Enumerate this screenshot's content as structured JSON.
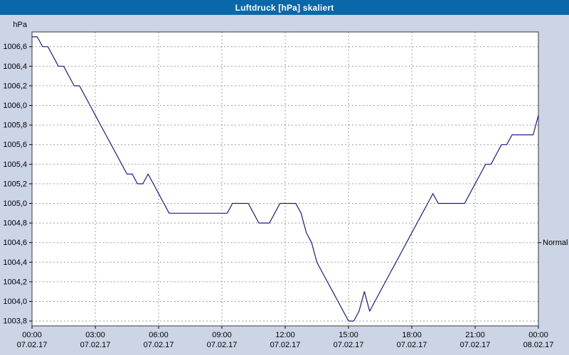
{
  "window": {
    "title": "Luftdruck [hPa] skaliert"
  },
  "colors": {
    "background": "#ccd5e5",
    "title_bar": "#0b68a8",
    "title_text": "#ffffff",
    "plot_bg": "#ffffff",
    "plot_border": "#3a3a3a",
    "grid": "#9aa0a8",
    "axis": "#000000",
    "line": "#1a1a9c"
  },
  "chart_data": {
    "type": "line",
    "title": "Luftdruck [hPa] skaliert",
    "y_axis_label": "hPa",
    "xlabel": "",
    "ylabel": "hPa",
    "grid": true,
    "ylim": [
      1003.75,
      1006.75
    ],
    "x_range_hours": [
      0,
      24
    ],
    "y_ticks": [
      1006.6,
      1006.4,
      1006.2,
      1006.0,
      1005.8,
      1005.6,
      1005.4,
      1005.2,
      1005.0,
      1004.8,
      1004.6,
      1004.4,
      1004.2,
      1004.0,
      1003.8
    ],
    "y_tick_labels": [
      "1006,6",
      "1006,4",
      "1006,2",
      "1006,0",
      "1005,8",
      "1005,6",
      "1005,4",
      "1005,2",
      "1005,0",
      "1004,8",
      "1004,6",
      "1004,4",
      "1004,2",
      "1004,0",
      "1003,8"
    ],
    "x_ticks_hours": [
      0,
      3,
      6,
      9,
      12,
      15,
      18,
      21,
      24
    ],
    "x_tick_labels": [
      "00:00",
      "03:00",
      "06:00",
      "09:00",
      "12:00",
      "15:00",
      "18:00",
      "21:00",
      "00:00"
    ],
    "x_tick_dates": [
      "07.02.17",
      "07.02.17",
      "07.02.17",
      "07.02.17",
      "07.02.17",
      "07.02.17",
      "07.02.17",
      "07.02.17",
      "08.02.17"
    ],
    "normal_marker": {
      "label": "Normal",
      "value": 1004.6
    },
    "series": [
      {
        "name": "Luftdruck",
        "x_hours": [
          0,
          0.25,
          0.5,
          0.75,
          1,
          1.25,
          1.5,
          1.75,
          2,
          2.25,
          2.5,
          2.75,
          3,
          3.25,
          3.5,
          3.75,
          4,
          4.25,
          4.5,
          4.75,
          5,
          5.25,
          5.5,
          5.75,
          6,
          6.25,
          6.5,
          6.75,
          7,
          7.25,
          7.5,
          7.75,
          8,
          8.25,
          8.5,
          8.75,
          9,
          9.25,
          9.5,
          9.75,
          10,
          10.25,
          10.5,
          10.75,
          11,
          11.25,
          11.5,
          11.75,
          12,
          12.25,
          12.5,
          12.75,
          13,
          13.25,
          13.5,
          13.75,
          14,
          14.25,
          14.5,
          14.75,
          15,
          15.25,
          15.5,
          15.75,
          16,
          16.25,
          16.5,
          16.75,
          17,
          17.25,
          17.5,
          17.75,
          18,
          18.25,
          18.5,
          18.75,
          19,
          19.25,
          19.5,
          19.75,
          20,
          20.25,
          20.5,
          20.75,
          21,
          21.25,
          21.5,
          21.75,
          22,
          22.25,
          22.5,
          22.75,
          23,
          23.25,
          23.5,
          23.75,
          24
        ],
        "values": [
          1006.7,
          1006.7,
          1006.6,
          1006.6,
          1006.5,
          1006.4,
          1006.4,
          1006.3,
          1006.2,
          1006.2,
          1006.1,
          1006.0,
          1005.9,
          1005.8,
          1005.7,
          1005.6,
          1005.5,
          1005.4,
          1005.3,
          1005.3,
          1005.2,
          1005.2,
          1005.3,
          1005.2,
          1005.1,
          1005.0,
          1004.9,
          1004.9,
          1004.9,
          1004.9,
          1004.9,
          1004.9,
          1004.9,
          1004.9,
          1004.9,
          1004.9,
          1004.9,
          1004.9,
          1005.0,
          1005.0,
          1005.0,
          1005.0,
          1004.9,
          1004.8,
          1004.8,
          1004.8,
          1004.9,
          1005.0,
          1005.0,
          1005.0,
          1005.0,
          1004.9,
          1004.7,
          1004.6,
          1004.4,
          1004.3,
          1004.2,
          1004.1,
          1004.0,
          1003.9,
          1003.8,
          1003.8,
          1003.9,
          1004.1,
          1003.9,
          1004.0,
          1004.1,
          1004.2,
          1004.3,
          1004.4,
          1004.5,
          1004.6,
          1004.7,
          1004.8,
          1004.9,
          1005.0,
          1005.1,
          1005.0,
          1005.0,
          1005.0,
          1005.0,
          1005.0,
          1005.0,
          1005.1,
          1005.2,
          1005.3,
          1005.4,
          1005.4,
          1005.5,
          1005.6,
          1005.6,
          1005.7,
          1005.7,
          1005.7,
          1005.7,
          1005.7,
          1005.9
        ]
      }
    ]
  }
}
